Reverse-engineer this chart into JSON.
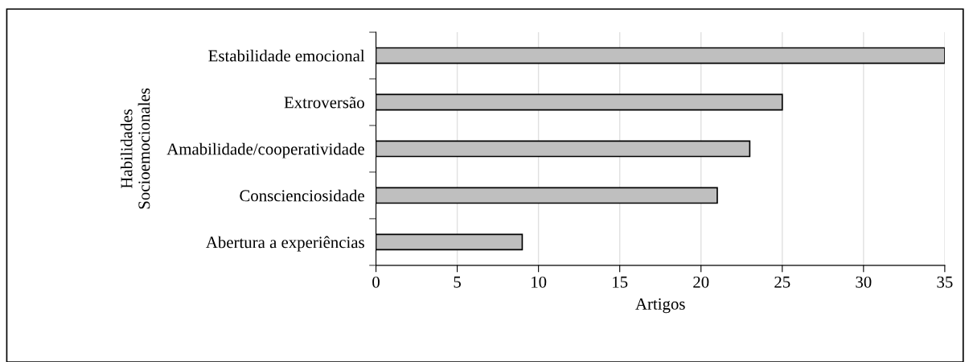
{
  "chart_data": {
    "type": "bar",
    "orientation": "horizontal",
    "categories": [
      "Estabilidade emocional",
      "Extroversão",
      "Amabilidade/cooperatividade",
      "Conscienciosidade",
      "Abertura a experiências"
    ],
    "values": [
      35,
      25,
      23,
      21,
      9
    ],
    "color": "#bfbfbf",
    "xlabel": "Artigos",
    "ylabel": "Habilidades\nSocioemocionales",
    "xlim": [
      0,
      35
    ],
    "xticks": [
      0,
      5,
      10,
      15,
      20,
      25,
      30,
      35
    ],
    "grid": "x"
  }
}
